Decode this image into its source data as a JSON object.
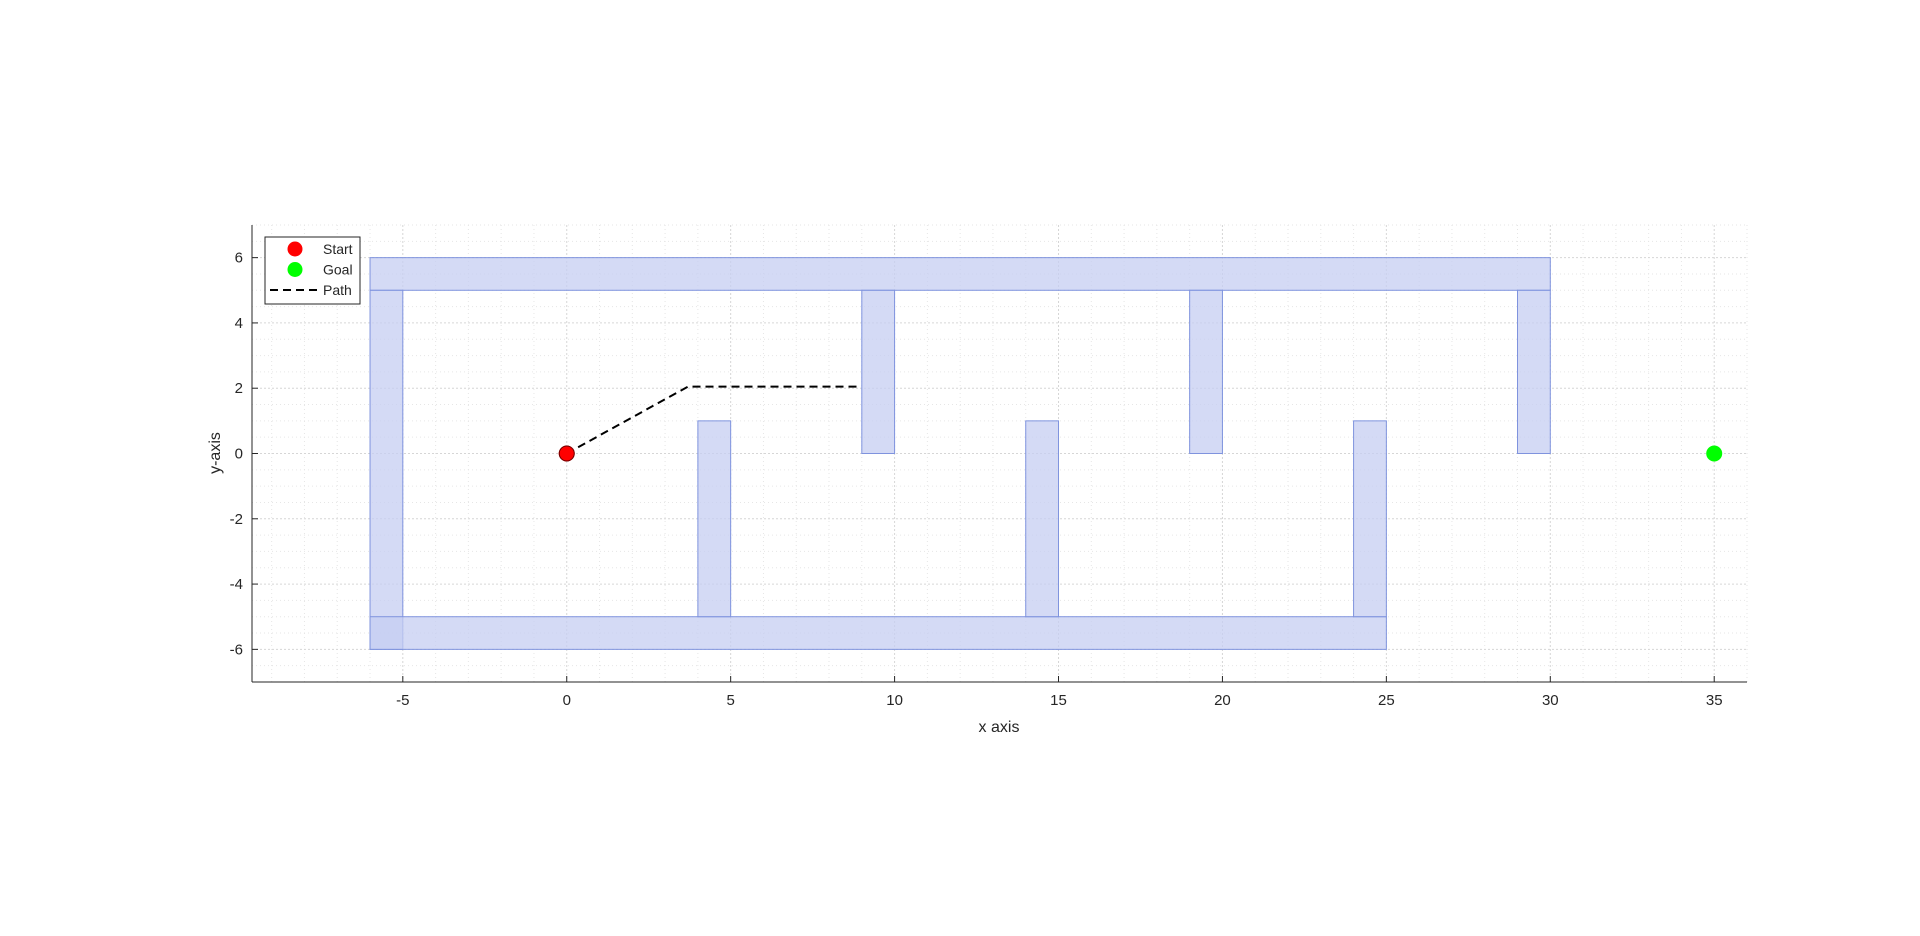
{
  "chart_data": {
    "type": "scatter",
    "title": "",
    "xlabel": "x axis",
    "ylabel": "y-axis",
    "xlim": [
      -9.6,
      36
    ],
    "ylim": [
      -7,
      7
    ],
    "xticks": [
      -5,
      0,
      5,
      10,
      15,
      20,
      25,
      30,
      35
    ],
    "yticks": [
      -6,
      -4,
      -2,
      0,
      2,
      4,
      6
    ],
    "x_tick_labels": [
      "-5",
      "0",
      "5",
      "10",
      "15",
      "20",
      "25",
      "30",
      "35"
    ],
    "y_tick_labels": [
      "-6",
      "-4",
      "-2",
      "0",
      "2",
      "4",
      "6"
    ],
    "grid": "on (major and minor, dotted)",
    "legend_position": "top-left",
    "obstacle_color": "#c5cdf2",
    "obstacle_edge_color": "#7f93de",
    "obstacles": [
      {
        "x": [
          -6,
          30
        ],
        "y": [
          5,
          6
        ]
      },
      {
        "x": [
          -6,
          -5
        ],
        "y": [
          -6,
          5
        ]
      },
      {
        "x": [
          -6,
          25
        ],
        "y": [
          -6,
          -5
        ]
      },
      {
        "x": [
          9,
          10
        ],
        "y": [
          0,
          5
        ]
      },
      {
        "x": [
          19,
          20
        ],
        "y": [
          0,
          5
        ]
      },
      {
        "x": [
          29,
          30
        ],
        "y": [
          0,
          5
        ]
      },
      {
        "x": [
          4,
          5
        ],
        "y": [
          -5,
          1
        ]
      },
      {
        "x": [
          14,
          15
        ],
        "y": [
          -5,
          1
        ]
      },
      {
        "x": [
          24,
          25
        ],
        "y": [
          -5,
          1
        ]
      }
    ],
    "series": [
      {
        "name": "Start",
        "marker": "circle",
        "color": "#ff0000",
        "points": [
          [
            0,
            0
          ]
        ]
      },
      {
        "name": "Goal",
        "marker": "circle",
        "color": "#00ff00",
        "points": [
          [
            35,
            0
          ]
        ]
      },
      {
        "name": "Path",
        "line_style": "dashed",
        "color": "#000000",
        "points": [
          [
            0,
            0
          ],
          [
            3.7,
            2.05
          ],
          [
            8.9,
            2.05
          ]
        ]
      }
    ]
  }
}
